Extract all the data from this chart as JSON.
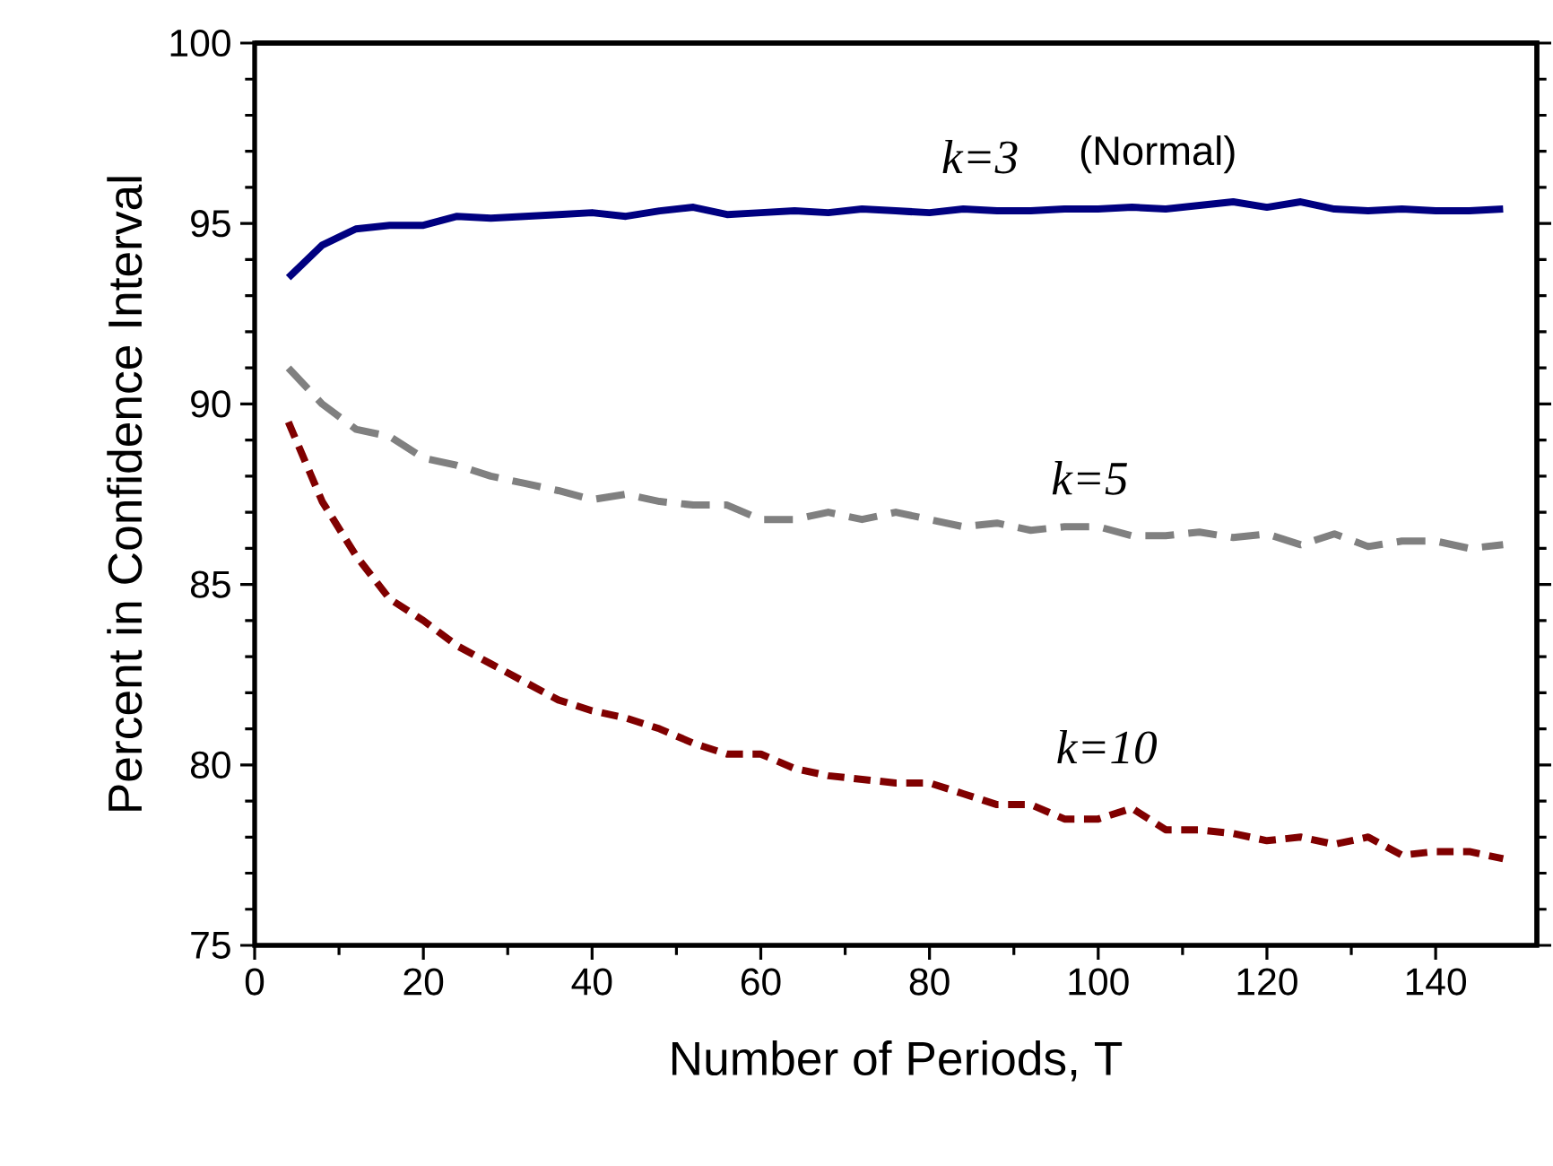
{
  "chart_data": {
    "type": "line",
    "xlabel": "Number of Periods, T",
    "ylabel": "Percent in Confidence Interval",
    "x": [
      4,
      8,
      12,
      16,
      20,
      24,
      28,
      32,
      36,
      40,
      44,
      48,
      52,
      56,
      60,
      64,
      68,
      72,
      76,
      80,
      84,
      88,
      92,
      96,
      100,
      104,
      108,
      112,
      116,
      120,
      124,
      128,
      132,
      136,
      140,
      144,
      148
    ],
    "series": [
      {
        "name": "k=3",
        "color": "#000080",
        "line_style": "solid",
        "values": [
          93.5,
          94.4,
          94.85,
          94.95,
          94.95,
          95.2,
          95.15,
          95.2,
          95.25,
          95.3,
          95.2,
          95.35,
          95.45,
          95.25,
          95.3,
          95.35,
          95.3,
          95.4,
          95.35,
          95.3,
          95.4,
          95.35,
          95.35,
          95.4,
          95.4,
          95.45,
          95.4,
          95.5,
          95.6,
          95.45,
          95.6,
          95.4,
          95.35,
          95.4,
          95.35,
          95.35,
          95.4
        ]
      },
      {
        "name": "k=5",
        "color": "#808080",
        "line_style": "dashed",
        "values": [
          91.0,
          90.0,
          89.3,
          89.1,
          88.5,
          88.3,
          88.0,
          87.8,
          87.6,
          87.35,
          87.5,
          87.3,
          87.2,
          87.2,
          86.8,
          86.8,
          87.0,
          86.8,
          87.0,
          86.8,
          86.6,
          86.7,
          86.5,
          86.6,
          86.6,
          86.35,
          86.35,
          86.45,
          86.3,
          86.4,
          86.1,
          86.4,
          86.05,
          86.2,
          86.2,
          86.0,
          86.1
        ]
      },
      {
        "name": "k=10",
        "color": "#800000",
        "line_style": "dashed",
        "values": [
          89.5,
          87.3,
          85.8,
          84.6,
          84.0,
          83.3,
          82.8,
          82.3,
          81.8,
          81.5,
          81.3,
          81.0,
          80.6,
          80.3,
          80.3,
          79.9,
          79.7,
          79.6,
          79.5,
          79.5,
          79.2,
          78.9,
          78.9,
          78.5,
          78.5,
          78.8,
          78.2,
          78.2,
          78.1,
          77.9,
          78.0,
          77.8,
          78.0,
          77.5,
          77.6,
          77.6,
          77.4
        ]
      }
    ],
    "annotations": [
      "(Normal)"
    ],
    "xlim": [
      0,
      152
    ],
    "xticks": [
      0,
      20,
      40,
      60,
      80,
      100,
      120,
      140
    ],
    "ylim": [
      75,
      100
    ],
    "yticks": [
      75,
      80,
      85,
      90,
      95,
      100
    ],
    "grid": false,
    "legend": false,
    "marker": "none"
  }
}
